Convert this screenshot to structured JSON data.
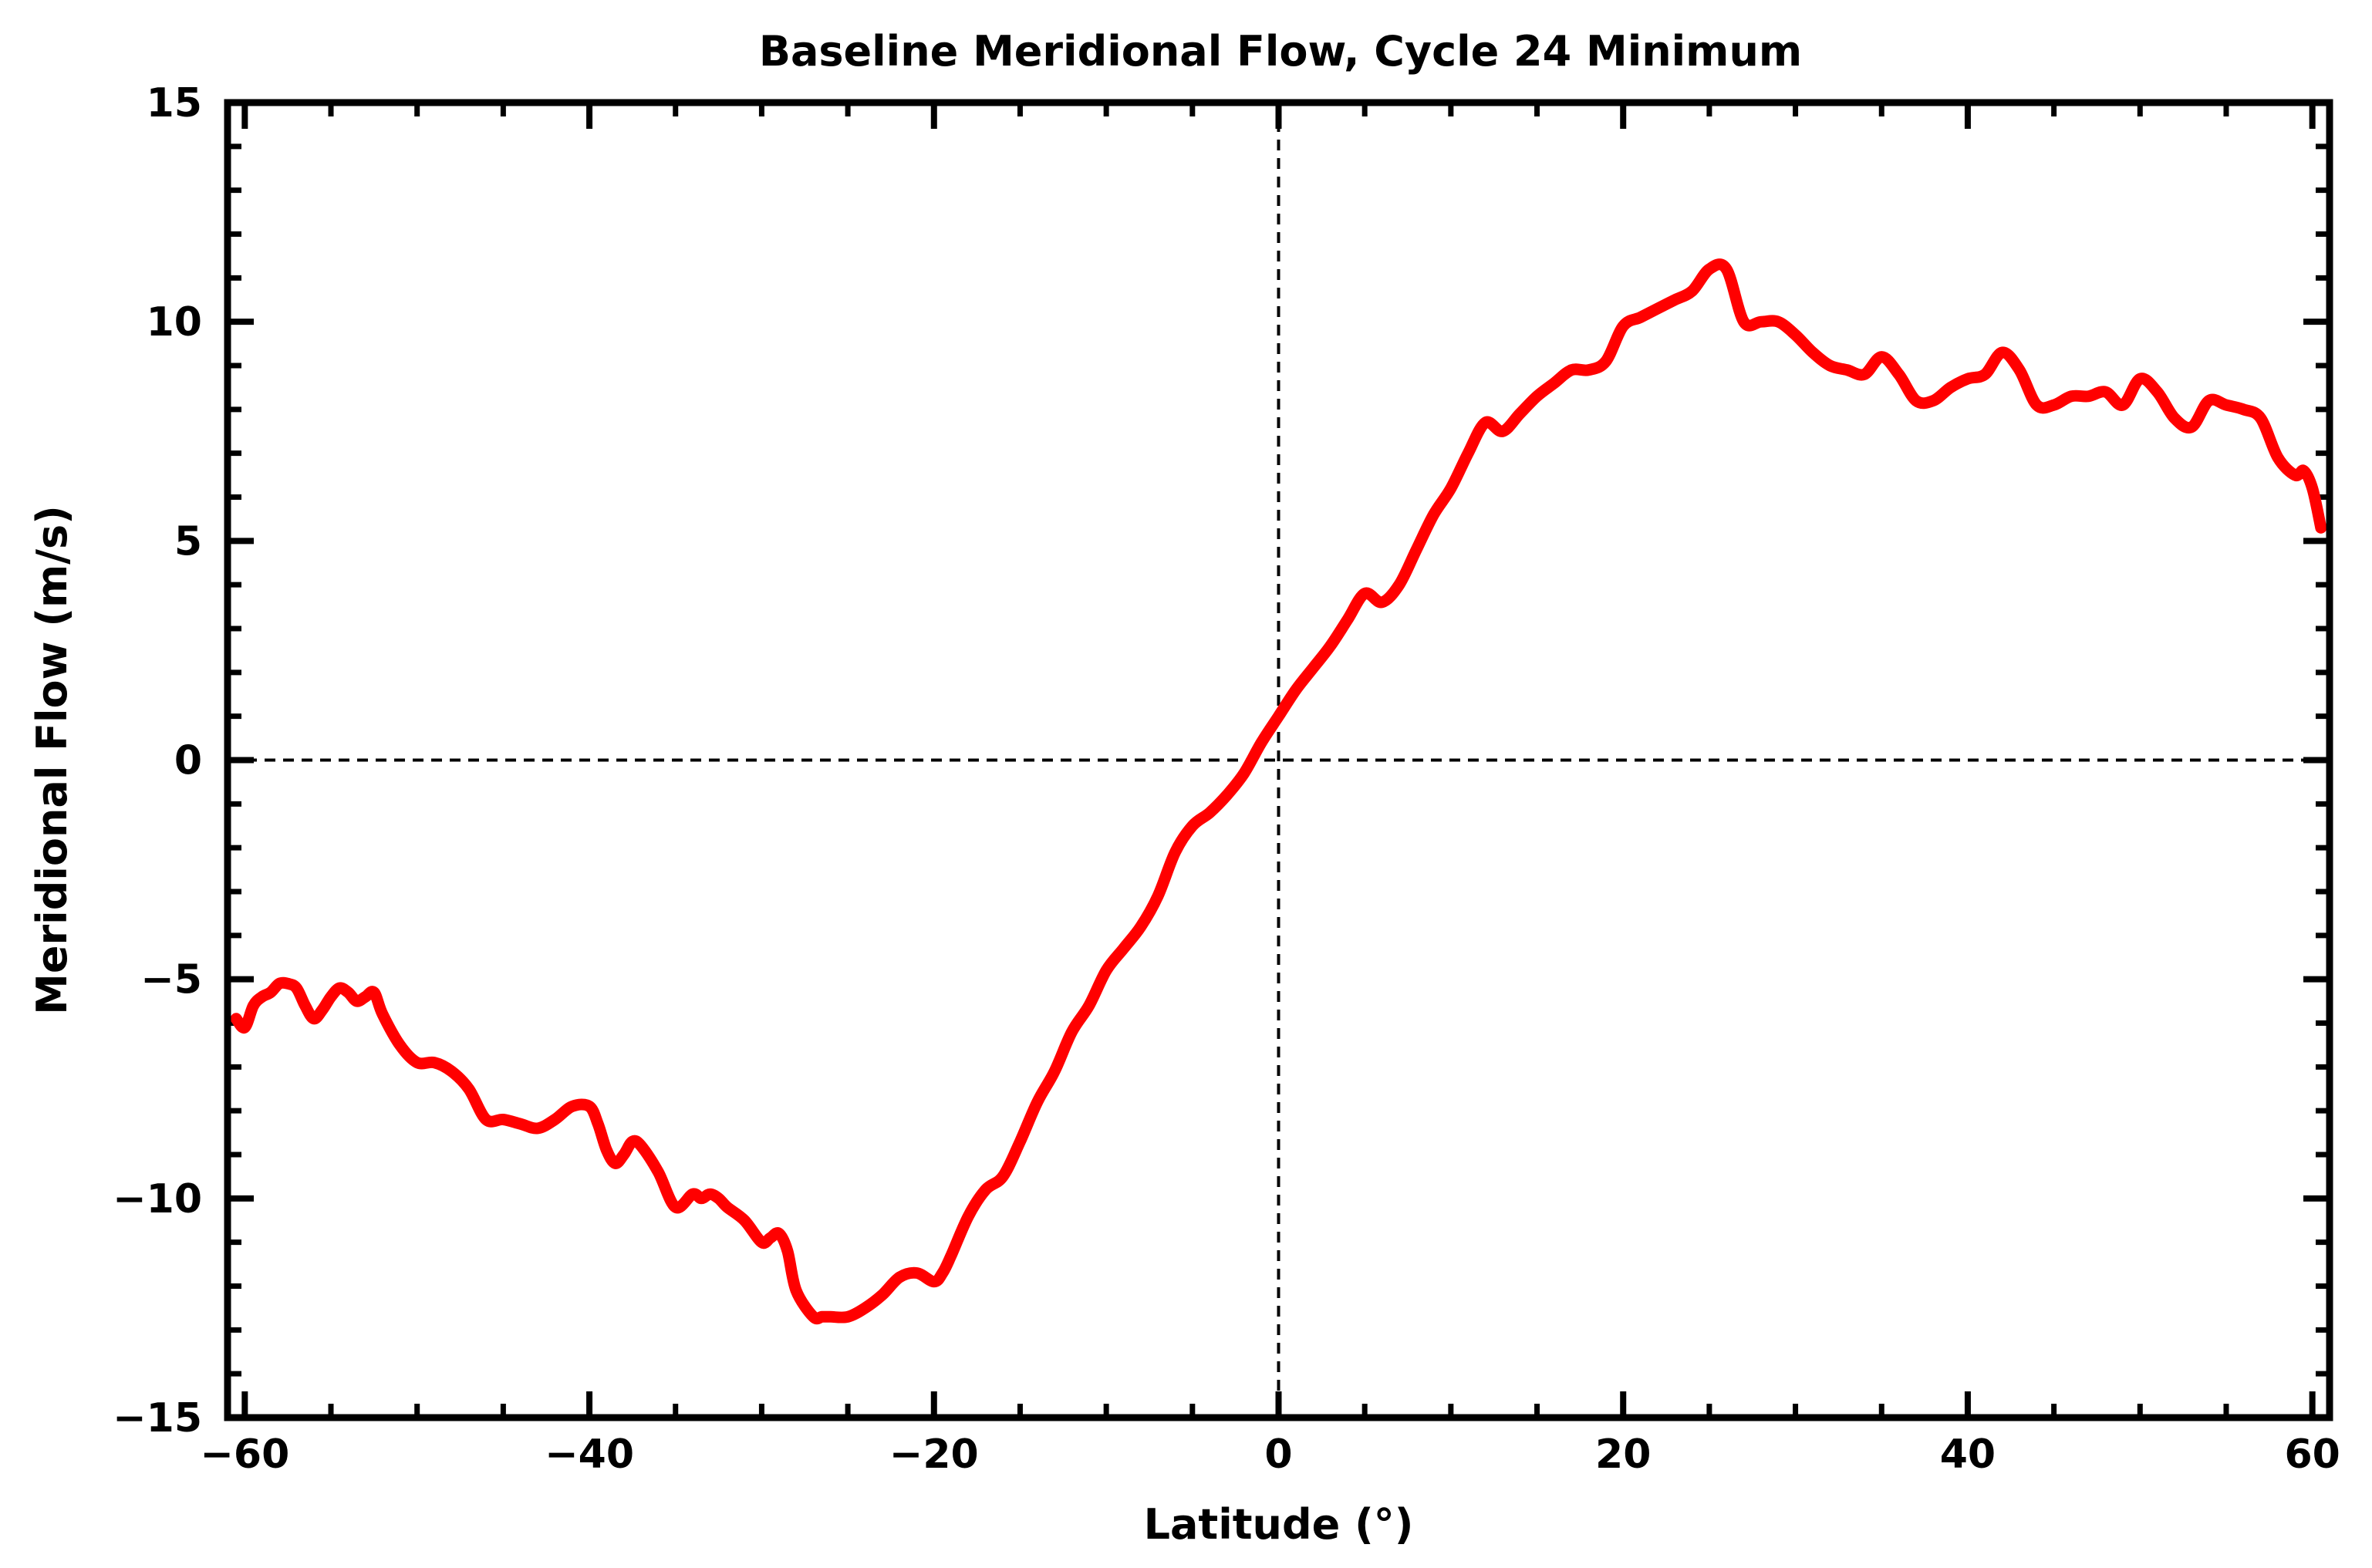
{
  "chart_data": {
    "type": "line",
    "title": "Baseline Meridional Flow, Cycle 24 Minimum",
    "xlabel": "Latitude (°)",
    "ylabel": "Meridional Flow (m/s)",
    "xlim": [
      -61,
      61
    ],
    "ylim": [
      -15,
      15
    ],
    "xticks": [
      -60,
      -40,
      -20,
      0,
      20,
      40,
      60
    ],
    "xtick_labels": [
      "−60",
      "−40",
      "−20",
      "0",
      "20",
      "40",
      "60"
    ],
    "yticks": [
      -15,
      -10,
      -5,
      0,
      5,
      10,
      15
    ],
    "ytick_labels": [
      "−15",
      "−10",
      "−5",
      "0",
      "5",
      "10",
      "15"
    ],
    "grid": false,
    "reference_lines": {
      "x": 0,
      "y": 0,
      "style": "dashed"
    },
    "series": [
      {
        "name": "Meridional Flow",
        "color": "#ff0000",
        "x": [
          -60.5,
          -60,
          -59.5,
          -59,
          -58.5,
          -58,
          -57.5,
          -57,
          -56.5,
          -56,
          -55.5,
          -55,
          -54.5,
          -54,
          -53.5,
          -53,
          -52.5,
          -52,
          -51,
          -50,
          -49,
          -48,
          -47,
          -46,
          -45,
          -44,
          -43,
          -42,
          -41,
          -40,
          -39.5,
          -39,
          -38.5,
          -38,
          -37.5,
          -37,
          -36,
          -35,
          -34,
          -33.5,
          -33,
          -32.5,
          -32,
          -31,
          -30,
          -29.5,
          -29,
          -28.5,
          -28,
          -27,
          -26.5,
          -26,
          -25,
          -24,
          -23,
          -22,
          -21,
          -20,
          -19.5,
          -19,
          -18,
          -17,
          -16,
          -15,
          -14,
          -13,
          -12,
          -11,
          -10,
          -9,
          -8,
          -7,
          -6,
          -5,
          -4,
          -3,
          -2,
          -1,
          0,
          1,
          2,
          3,
          4,
          5,
          6,
          7,
          8,
          9,
          10,
          11,
          12,
          13,
          14,
          15,
          16,
          17,
          18,
          19,
          20,
          21,
          22,
          23,
          24,
          25,
          26,
          27,
          28,
          29,
          30,
          31,
          32,
          33,
          34,
          35,
          36,
          37,
          38,
          39,
          40,
          41,
          42,
          43,
          44,
          45,
          46,
          47,
          48,
          49,
          50,
          51,
          52,
          53,
          54,
          55,
          56,
          57,
          58,
          59,
          59.5,
          60,
          60.5
        ],
        "y": [
          -5.9,
          -6.1,
          -5.6,
          -5.4,
          -5.3,
          -5.1,
          -5.1,
          -5.2,
          -5.6,
          -5.9,
          -5.7,
          -5.4,
          -5.2,
          -5.3,
          -5.5,
          -5.4,
          -5.3,
          -5.8,
          -6.5,
          -6.9,
          -6.9,
          -7.1,
          -7.5,
          -8.2,
          -8.2,
          -8.3,
          -8.4,
          -8.2,
          -7.9,
          -7.9,
          -8.3,
          -8.9,
          -9.2,
          -9.0,
          -8.7,
          -8.8,
          -9.4,
          -10.2,
          -9.9,
          -10.0,
          -9.9,
          -10.0,
          -10.2,
          -10.5,
          -11.0,
          -10.9,
          -10.8,
          -11.2,
          -12.1,
          -12.7,
          -12.7,
          -12.7,
          -12.7,
          -12.5,
          -12.2,
          -11.8,
          -11.7,
          -11.9,
          -11.7,
          -11.3,
          -10.4,
          -9.8,
          -9.5,
          -8.7,
          -7.8,
          -7.1,
          -6.2,
          -5.6,
          -4.8,
          -4.3,
          -3.8,
          -3.1,
          -2.1,
          -1.5,
          -1.2,
          -0.8,
          -0.3,
          0.4,
          1.0,
          1.6,
          2.1,
          2.6,
          3.2,
          3.8,
          3.6,
          4.0,
          4.8,
          5.6,
          6.2,
          7.0,
          7.7,
          7.5,
          7.9,
          8.3,
          8.6,
          8.9,
          8.9,
          9.1,
          9.9,
          10.1,
          10.3,
          10.5,
          10.7,
          11.2,
          11.2,
          10.0,
          10.0,
          10.0,
          9.7,
          9.3,
          9.0,
          8.9,
          8.8,
          9.2,
          8.8,
          8.2,
          8.2,
          8.5,
          8.7,
          8.8,
          9.3,
          8.9,
          8.1,
          8.1,
          8.3,
          8.3,
          8.4,
          8.1,
          8.7,
          8.4,
          7.8,
          7.6,
          8.2,
          8.1,
          8.0,
          7.8,
          6.9,
          6.5,
          6.6,
          6.2,
          5.3
        ]
      }
    ]
  }
}
